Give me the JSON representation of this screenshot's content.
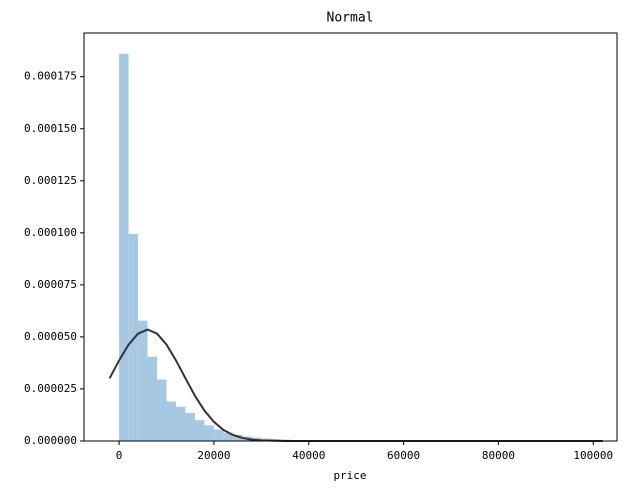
{
  "chart_data": {
    "type": "histogram",
    "title": "Normal",
    "x_label": "price",
    "bins": [
      0,
      2000,
      4000,
      6000,
      8000,
      10000,
      12000,
      14000,
      16000,
      18000,
      20000,
      22000,
      24000,
      26000,
      28000,
      30000,
      32000,
      34000,
      36000,
      38000,
      40000,
      42000,
      44000,
      46000,
      48000,
      50000,
      52000,
      54000,
      56000,
      58000,
      60000,
      62000,
      64000,
      66000,
      68000,
      70000,
      72000,
      74000,
      76000,
      78000,
      80000,
      82000,
      84000,
      86000,
      88000,
      90000,
      92000,
      94000,
      96000,
      98000,
      100000
    ],
    "values": [
      0.000186,
      9.95e-05,
      5.78e-05,
      4.05e-05,
      2.95e-05,
      1.9e-05,
      1.65e-05,
      1.35e-05,
      1e-05,
      7.5e-06,
      5.5e-06,
      4e-06,
      3e-06,
      2.2e-06,
      1.6e-06,
      1.2e-06,
      9e-07,
      7e-07,
      5e-07,
      4e-07,
      3e-07,
      2e-07,
      2e-07,
      2e-07,
      2e-07,
      2e-07,
      1e-07,
      1e-07,
      1e-07,
      1e-07,
      1e-07,
      1e-07,
      1e-07,
      1e-07,
      1e-07,
      1e-07,
      5e-08,
      5e-08,
      5e-08,
      5e-08,
      5e-08,
      5e-08,
      5e-08,
      5e-08,
      5e-08,
      5e-08,
      5e-08,
      5e-08,
      5e-08,
      5e-08
    ],
    "color": "#a6c8e3",
    "curve": {
      "color": "#333333",
      "x": [
        -2000,
        0,
        2000,
        4000,
        6000,
        8000,
        10000,
        12000,
        14000,
        16000,
        18000,
        20000,
        22000,
        24000,
        26000,
        28000,
        30000,
        35000,
        40000,
        60000,
        80000,
        102000
      ],
      "values": [
        3.01e-05,
        3.87e-05,
        4.63e-05,
        5.16e-05,
        5.35e-05,
        5.16e-05,
        4.63e-05,
        3.87e-05,
        3.01e-05,
        2.17e-05,
        1.46e-05,
        9.15e-06,
        5.33e-06,
        2.89e-06,
        1.46e-06,
        6.8e-07,
        3e-07,
        2.7e-08,
        0,
        0,
        0,
        0
      ]
    },
    "xlim": [
      -7400,
      105000
    ],
    "ylim": [
      0,
      0.000196
    ],
    "xticks": [
      0,
      20000,
      40000,
      60000,
      80000,
      100000
    ],
    "yticks": [
      {
        "value": 0,
        "label": "0.000000"
      },
      {
        "value": 2.5e-05,
        "label": "0.000025"
      },
      {
        "value": 5e-05,
        "label": "0.000050"
      },
      {
        "value": 7.5e-05,
        "label": "0.000075"
      },
      {
        "value": 0.0001,
        "label": "0.000100"
      },
      {
        "value": 0.000125,
        "label": "0.000125"
      },
      {
        "value": 0.00015,
        "label": "0.000150"
      },
      {
        "value": 0.000175,
        "label": "0.000175"
      }
    ]
  }
}
